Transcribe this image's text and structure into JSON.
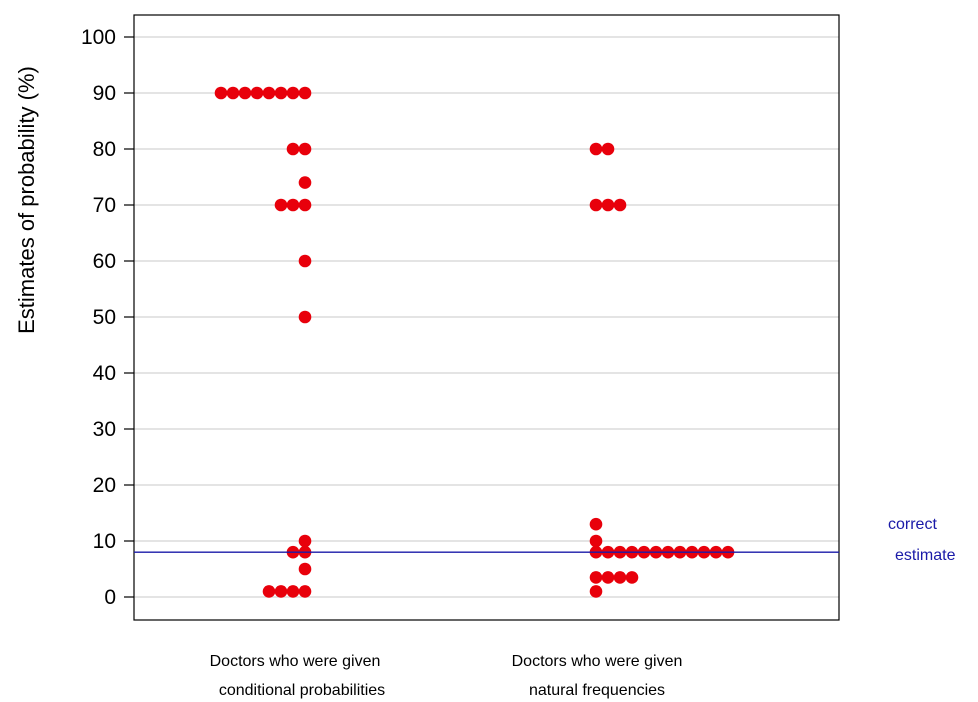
{
  "chart_data": {
    "type": "scatter",
    "ylabel": "Estimates of probability (%)",
    "ylim": [
      0,
      100
    ],
    "yticks": [
      0,
      10,
      20,
      30,
      40,
      50,
      60,
      70,
      80,
      90,
      100
    ],
    "grid": true,
    "categories": [
      {
        "line1": "Doctors who were given",
        "line2": "conditional probabilities"
      },
      {
        "line1": "Doctors who were given",
        "line2": "natural frequencies"
      }
    ],
    "series": [
      {
        "color": "#e8000b",
        "points": [
          {
            "v": 90,
            "n": 8
          },
          {
            "v": 80,
            "n": 2
          },
          {
            "v": 74,
            "n": 1
          },
          {
            "v": 70,
            "n": 3
          },
          {
            "v": 60,
            "n": 1
          },
          {
            "v": 50,
            "n": 1
          },
          {
            "v": 10,
            "n": 1
          },
          {
            "v": 8,
            "n": 2
          },
          {
            "v": 5,
            "n": 1
          },
          {
            "v": 1,
            "n": 4
          }
        ]
      },
      {
        "color": "#e8000b",
        "points": [
          {
            "v": 80,
            "n": 2
          },
          {
            "v": 70,
            "n": 3
          },
          {
            "v": 13,
            "n": 1
          },
          {
            "v": 10,
            "n": 1
          },
          {
            "v": 8,
            "n": 12
          },
          {
            "v": 3.5,
            "n": 4
          },
          {
            "v": 1,
            "n": 1
          }
        ]
      }
    ],
    "reference_line": {
      "value": 8,
      "color": "#1a1aa8",
      "label_line1": "correct",
      "label_line2": "estimate"
    }
  }
}
